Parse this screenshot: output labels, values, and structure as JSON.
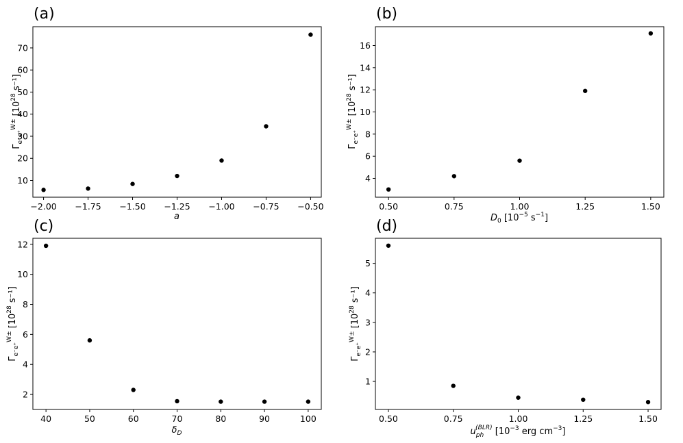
{
  "chart_data": [
    {
      "type": "scatter",
      "panel": "(a)",
      "xlabel": "a",
      "ylabel": "Γ_{e⁻e⁺}^{W±} [10^28 s⁻¹]",
      "xlim": [
        -2.06,
        -0.44
      ],
      "ylim": [
        2.4,
        79.6
      ],
      "xticks": [
        "−2.00",
        "−1.75",
        "−1.50",
        "−1.25",
        "−1.00",
        "−0.75",
        "−0.50"
      ],
      "xtick_values": [
        -2.0,
        -1.75,
        -1.5,
        -1.25,
        -1.0,
        -0.75,
        -0.5
      ],
      "yticks": [
        "10",
        "20",
        "30",
        "40",
        "50",
        "60",
        "70"
      ],
      "ytick_values": [
        10,
        20,
        30,
        40,
        50,
        60,
        70
      ],
      "x": [
        -2.0,
        -1.75,
        -1.5,
        -1.25,
        -1.0,
        -0.75,
        -0.5
      ],
      "y": [
        5.7,
        6.3,
        8.4,
        12.0,
        19.0,
        34.5,
        76.0
      ]
    },
    {
      "type": "scatter",
      "panel": "(b)",
      "xlabel": "D₀ [10⁻⁵ s⁻¹]",
      "ylabel": "Γ_{e⁻e⁺}^{W±} [10^28 s⁻¹]",
      "xlim": [
        0.45,
        1.55
      ],
      "ylim": [
        2.3,
        17.7
      ],
      "xticks": [
        "0.50",
        "0.75",
        "1.00",
        "1.25",
        "1.50"
      ],
      "xtick_values": [
        0.5,
        0.75,
        1.0,
        1.25,
        1.5
      ],
      "yticks": [
        "4",
        "6",
        "8",
        "10",
        "12",
        "14",
        "16"
      ],
      "ytick_values": [
        4,
        6,
        8,
        10,
        12,
        14,
        16
      ],
      "x": [
        0.5,
        0.75,
        1.0,
        1.25,
        1.5
      ],
      "y": [
        3.0,
        4.2,
        5.6,
        11.9,
        17.1
      ]
    },
    {
      "type": "scatter",
      "panel": "(c)",
      "xlabel": "δ_D",
      "ylabel": "Γ_{e⁻e⁺}^{W±} [10^28 s⁻¹]",
      "xlim": [
        37,
        103
      ],
      "ylim": [
        1.0,
        12.4
      ],
      "xticks": [
        "40",
        "50",
        "60",
        "70",
        "80",
        "90",
        "100"
      ],
      "xtick_values": [
        40,
        50,
        60,
        70,
        80,
        90,
        100
      ],
      "yticks": [
        "2",
        "4",
        "6",
        "8",
        "10",
        "12"
      ],
      "ytick_values": [
        2,
        4,
        6,
        8,
        10,
        12
      ],
      "x": [
        40,
        50,
        60,
        70,
        80,
        90,
        100
      ],
      "y": [
        11.9,
        5.6,
        2.3,
        1.55,
        1.52,
        1.52,
        1.52
      ]
    },
    {
      "type": "scatter",
      "panel": "(d)",
      "xlabel": "u_ph^(BLR) [10⁻³ erg cm⁻³]",
      "ylabel": "Γ_{e⁻e⁺}^{W±} [10^28 s⁻¹]",
      "xlim": [
        0.45,
        1.55
      ],
      "ylim": [
        0.05,
        5.85
      ],
      "xticks": [
        "0.50",
        "0.75",
        "1.00",
        "1.25",
        "1.50"
      ],
      "xtick_values": [
        0.5,
        0.75,
        1.0,
        1.25,
        1.5
      ],
      "yticks": [
        "1",
        "2",
        "3",
        "4",
        "5"
      ],
      "ytick_values": [
        1,
        2,
        3,
        4,
        5
      ],
      "x": [
        0.5,
        0.75,
        1.0,
        1.25,
        1.5
      ],
      "y": [
        5.6,
        0.85,
        0.45,
        0.38,
        0.3
      ]
    }
  ]
}
